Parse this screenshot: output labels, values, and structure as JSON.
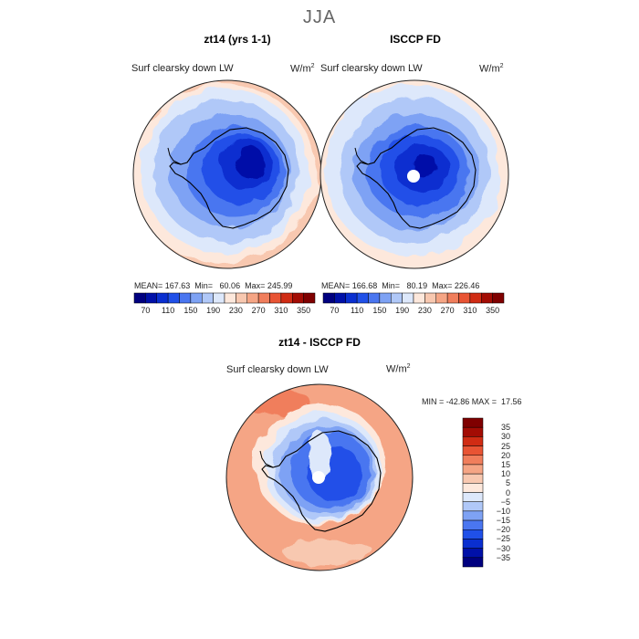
{
  "figure": {
    "season": "JJA"
  },
  "panels": {
    "model": {
      "title": "zt14 (yrs 1-1)",
      "variable": "Surf clearsky down LW",
      "units": "W/m",
      "units_exp": "2",
      "stats": "MEAN= 167.63  Min=   60.06  Max= 245.99"
    },
    "obs": {
      "title": "ISCCP FD",
      "variable": "Surf clearsky down LW",
      "units": "W/m",
      "units_exp": "2",
      "stats": "MEAN= 166.68  Min=   80.19  Max= 226.46"
    },
    "diff": {
      "title": "zt14 - ISCCP FD",
      "variable": "Surf clearsky down LW",
      "units": "W/m",
      "units_exp": "2",
      "stats": "MIN = -42.86 MAX =  17.56"
    }
  },
  "colors": {
    "abs_scale": [
      "#00007f",
      "#0010a8",
      "#0a2fd0",
      "#2050e8",
      "#4a76f0",
      "#7ea2f4",
      "#b0c8f8",
      "#dde8fb",
      "#fde8dc",
      "#f8c8b0",
      "#f5a585",
      "#f07e5c",
      "#e85434",
      "#d02c14",
      "#a30c04",
      "#7f0000"
    ],
    "diff_scale": [
      "#00007f",
      "#0010a8",
      "#0a2fd0",
      "#2050e8",
      "#4a76f0",
      "#7ea2f4",
      "#b0c8f8",
      "#dde8fb",
      "#fde8dc",
      "#f8c8b0",
      "#f5a585",
      "#f07e5c",
      "#e85434",
      "#d02c14",
      "#a30c04",
      "#7f0000"
    ],
    "coast": "#000000"
  },
  "chart_data": [
    {
      "type": "heatmap",
      "title": "zt14 (yrs 1-1)",
      "subtitle": "Surf clearsky down LW (W/m2)",
      "projection": "south polar stereographic",
      "stats": {
        "mean": 167.63,
        "min": 60.06,
        "max": 245.99
      },
      "colorbar": {
        "ticks": [
          70,
          110,
          150,
          190,
          230,
          270,
          310,
          350
        ],
        "range": [
          50,
          370
        ],
        "interval": 20,
        "orientation": "horizontal"
      }
    },
    {
      "type": "heatmap",
      "title": "ISCCP FD",
      "subtitle": "Surf clearsky down LW (W/m2)",
      "projection": "south polar stereographic",
      "stats": {
        "mean": 166.68,
        "min": 80.19,
        "max": 226.46
      },
      "colorbar": {
        "ticks": [
          70,
          110,
          150,
          190,
          230,
          270,
          310,
          350
        ],
        "range": [
          50,
          370
        ],
        "interval": 20,
        "orientation": "horizontal"
      }
    },
    {
      "type": "heatmap",
      "title": "zt14 - ISCCP FD",
      "subtitle": "Surf clearsky down LW (W/m2)",
      "projection": "south polar stereographic",
      "stats": {
        "min": -42.86,
        "max": 17.56
      },
      "colorbar": {
        "ticks": [
          35,
          30,
          25,
          20,
          15,
          10,
          5,
          0,
          -5,
          -10,
          -15,
          -20,
          -25,
          -30,
          -35
        ],
        "orientation": "vertical"
      }
    }
  ]
}
